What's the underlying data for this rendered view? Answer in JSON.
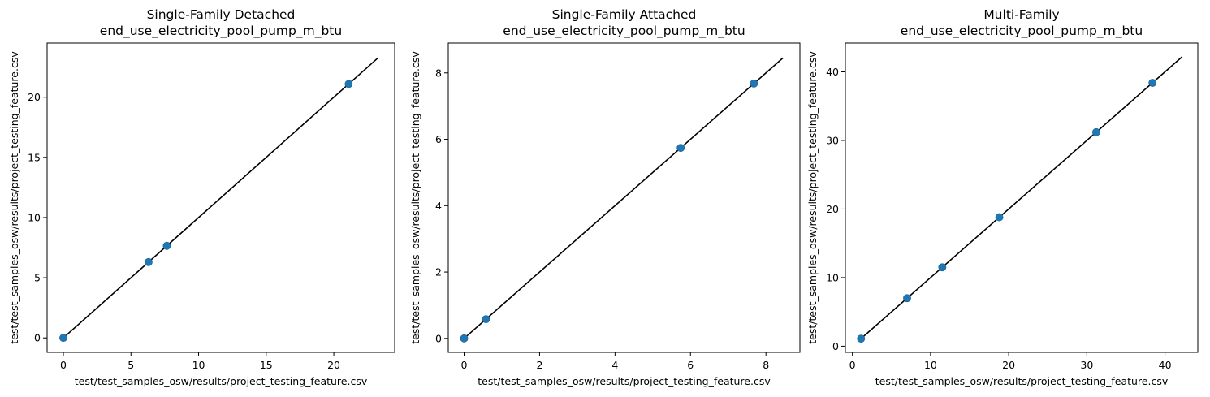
{
  "chart_data": [
    {
      "type": "scatter",
      "title": "Single-Family Detached\nend_use_electricity_pool_pump_m_btu",
      "xlabel": "test/test_samples_osw/results/project_testing_feature.csv",
      "ylabel": "test/test_samples_osw/results/project_testing_feature.csv",
      "xlim": [
        -1.2,
        24.5
      ],
      "ylim": [
        -1.2,
        24.5
      ],
      "xticks": [
        0,
        5,
        10,
        15,
        20
      ],
      "yticks": [
        0,
        5,
        10,
        15,
        20
      ],
      "points": [
        [
          0,
          0
        ],
        [
          6.3,
          6.3
        ],
        [
          7.65,
          7.65
        ],
        [
          21.1,
          21.1
        ]
      ],
      "line": [
        [
          0,
          0
        ],
        [
          23.3,
          23.3
        ]
      ],
      "colors": {
        "points": "#1f77b4",
        "line": "#000000"
      },
      "grid": false
    },
    {
      "type": "scatter",
      "title": "Single-Family Attached\nend_use_electricity_pool_pump_m_btu",
      "xlabel": "test/test_samples_osw/results/project_testing_feature.csv",
      "ylabel": "test/test_samples_osw/results/project_testing_feature.csv",
      "xlim": [
        -0.42,
        8.9
      ],
      "ylim": [
        -0.42,
        8.9
      ],
      "xticks": [
        0,
        2,
        4,
        6,
        8
      ],
      "yticks": [
        0,
        2,
        4,
        6,
        8
      ],
      "points": [
        [
          0,
          0
        ],
        [
          0.58,
          0.58
        ],
        [
          5.74,
          5.74
        ],
        [
          7.68,
          7.68
        ]
      ],
      "line": [
        [
          0,
          0
        ],
        [
          8.45,
          8.45
        ]
      ],
      "colors": {
        "points": "#1f77b4",
        "line": "#000000"
      },
      "grid": false
    },
    {
      "type": "scatter",
      "title": "Multi-Family\nend_use_electricity_pool_pump_m_btu",
      "xlabel": "test/test_samples_osw/results/project_testing_feature.csv",
      "ylabel": "test/test_samples_osw/results/project_testing_feature.csv",
      "xlim": [
        -0.9,
        44.2
      ],
      "ylim": [
        -0.9,
        44.2
      ],
      "xticks": [
        0,
        10,
        20,
        30,
        40
      ],
      "yticks": [
        0,
        10,
        20,
        30,
        40
      ],
      "points": [
        [
          1.1,
          1.1
        ],
        [
          7.0,
          7.0
        ],
        [
          11.5,
          11.5
        ],
        [
          18.8,
          18.8
        ],
        [
          31.2,
          31.2
        ],
        [
          38.4,
          38.4
        ]
      ],
      "line": [
        [
          1.1,
          1.1
        ],
        [
          42.2,
          42.2
        ]
      ],
      "colors": {
        "points": "#1f77b4",
        "line": "#000000"
      },
      "grid": false
    }
  ]
}
